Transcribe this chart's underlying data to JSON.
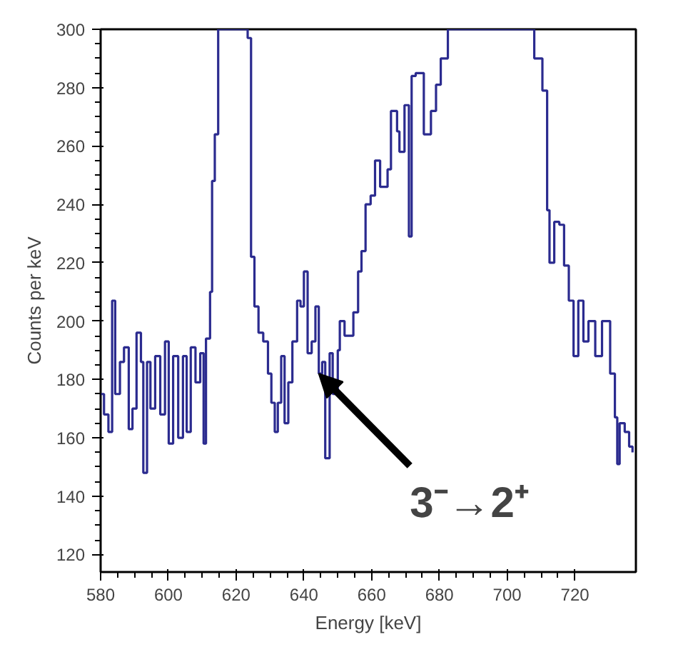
{
  "chart_data": {
    "type": "step",
    "xlabel": "Energy [keV]",
    "ylabel": "Counts per keV",
    "xlim": [
      580,
      738
    ],
    "ylim": [
      114,
      300
    ],
    "xticks": [
      580,
      600,
      620,
      640,
      660,
      680,
      700,
      720
    ],
    "yticks": [
      120,
      140,
      160,
      180,
      200,
      220,
      240,
      260,
      280,
      300
    ],
    "grid": false,
    "annotations": [
      {
        "text": "3⁻→2⁺",
        "x": 644.4,
        "y": 182
      }
    ],
    "series": [
      {
        "color": "#2b2b8f",
        "x": [
          580,
          581,
          582.3,
          583.4,
          584.3,
          585.7,
          586.9,
          588.3,
          589.4,
          590.6,
          591.9,
          592.6,
          593.7,
          594.7,
          596.1,
          597.6,
          599,
          600.1,
          601.4,
          602.9,
          604.3,
          605.4,
          606.6,
          608,
          609.4,
          610.4,
          611.1,
          612.3,
          612.9,
          613.7,
          614.7,
          623.4,
          624.4,
          625.4,
          626.6,
          628,
          629.4,
          630.4,
          631.4,
          632.3,
          633.3,
          634.3,
          635.4,
          636.6,
          638,
          639,
          640,
          641.1,
          642.3,
          643.4,
          644.4,
          645.4,
          646.3,
          647.6,
          648.5,
          650,
          650.6,
          652,
          654.6,
          656,
          657,
          658.2,
          659.7,
          661,
          662.5,
          664.7,
          665.7,
          667.5,
          668.2,
          669.7,
          671,
          671.8,
          673,
          675.4,
          677.5,
          679,
          680.4,
          682.5,
          708,
          710.4,
          711.8,
          712.5,
          713.9,
          715.4,
          716.8,
          718.2,
          719.6,
          721,
          722.5,
          724,
          726,
          728,
          730.4,
          731.8,
          732.5,
          733.2,
          734.7,
          736,
          737
        ],
        "values": [
          175,
          168,
          162,
          207,
          175,
          186,
          191,
          163,
          170,
          196,
          186,
          148,
          186,
          170,
          188,
          168,
          193,
          158,
          188,
          160,
          188,
          162,
          191,
          179,
          189,
          158,
          194,
          210,
          248,
          264,
          300,
          297,
          222,
          205,
          196,
          193,
          182,
          172,
          162,
          172,
          188,
          165,
          179,
          193,
          207,
          205,
          217,
          189,
          193,
          205,
          182,
          186,
          153,
          189,
          175,
          190,
          200,
          195,
          203,
          217,
          224,
          240,
          243,
          255,
          246,
          252,
          272,
          265,
          258,
          274,
          229,
          284,
          285,
          264,
          272,
          281,
          290,
          300,
          290,
          279,
          238,
          220,
          234,
          233,
          219,
          207,
          188,
          207,
          193,
          200,
          188,
          200,
          182,
          167,
          151,
          165,
          162,
          157,
          155
        ]
      }
    ]
  }
}
